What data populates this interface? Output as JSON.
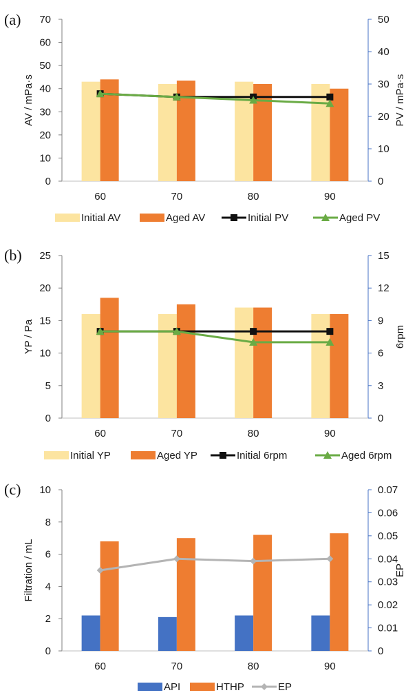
{
  "colors": {
    "initial_bar": "#fce4a0",
    "aged_bar": "#ee7d31",
    "initial_line": "#111111",
    "aged_line": "#6aab45",
    "api_bar": "#4472c4",
    "hthp_bar": "#ee7d31",
    "ep_line": "#b4b4b4",
    "right_axis": "#4472c4",
    "left_axis": "#7f7f7f"
  },
  "chart_data": [
    {
      "panel": "(a)",
      "type": "bar",
      "categories": [
        "60",
        "70",
        "80",
        "90"
      ],
      "ylabel": "AV / mPa·s",
      "ylabel_right": "PV / mPa·s",
      "ylim": [
        0,
        70
      ],
      "yticks": [
        0,
        10,
        20,
        30,
        40,
        50,
        60,
        70
      ],
      "ylim_right": [
        0,
        50
      ],
      "yticks_right": [
        0,
        10,
        20,
        30,
        40,
        50
      ],
      "series": [
        {
          "name": "Initial AV",
          "kind": "bar",
          "axis": "left",
          "color_key": "initial_bar",
          "values": [
            43,
            42,
            43,
            42
          ]
        },
        {
          "name": "Aged AV",
          "kind": "bar",
          "axis": "left",
          "color_key": "aged_bar",
          "values": [
            44,
            43.5,
            42,
            40
          ]
        },
        {
          "name": "Initial PV",
          "kind": "line",
          "marker": "square",
          "axis": "right",
          "color_key": "initial_line",
          "values": [
            27,
            26,
            26,
            26
          ]
        },
        {
          "name": "Aged PV",
          "kind": "line",
          "marker": "triangle",
          "axis": "right",
          "color_key": "aged_line",
          "values": [
            27,
            26,
            25,
            24
          ]
        }
      ],
      "legend": "bottom",
      "grid": false
    },
    {
      "panel": "(b)",
      "type": "bar",
      "categories": [
        "60",
        "70",
        "80",
        "90"
      ],
      "ylabel": "YP / Pa",
      "ylabel_right": "6rpm",
      "ylim": [
        0,
        25
      ],
      "yticks": [
        0,
        5,
        10,
        15,
        20,
        25
      ],
      "ylim_right": [
        0,
        15
      ],
      "yticks_right": [
        0,
        3,
        6,
        9,
        12,
        15
      ],
      "series": [
        {
          "name": "Initial YP",
          "kind": "bar",
          "axis": "left",
          "color_key": "initial_bar",
          "values": [
            16,
            16,
            17,
            16
          ]
        },
        {
          "name": "Aged YP",
          "kind": "bar",
          "axis": "left",
          "color_key": "aged_bar",
          "values": [
            18.5,
            17.5,
            17,
            16
          ]
        },
        {
          "name": "Initial 6rpm",
          "kind": "line",
          "marker": "square",
          "axis": "right",
          "color_key": "initial_line",
          "values": [
            8,
            8,
            8,
            8
          ]
        },
        {
          "name": "Aged 6rpm",
          "kind": "line",
          "marker": "triangle",
          "axis": "right",
          "color_key": "aged_line",
          "values": [
            8,
            8,
            7,
            7
          ]
        }
      ],
      "legend": "bottom",
      "grid": false
    },
    {
      "panel": "(c)",
      "type": "bar",
      "categories": [
        "60",
        "70",
        "80",
        "90"
      ],
      "ylabel": "Filtration / mL",
      "ylabel_right": "EP",
      "ylim": [
        0,
        10
      ],
      "yticks": [
        0,
        2,
        4,
        6,
        8,
        10
      ],
      "ylim_right": [
        0,
        0.07
      ],
      "yticks_right": [
        0,
        0.01,
        0.02,
        0.03,
        0.04,
        0.05,
        0.06,
        0.07
      ],
      "series": [
        {
          "name": "API",
          "kind": "bar",
          "axis": "left",
          "color_key": "api_bar",
          "values": [
            2.2,
            2.1,
            2.2,
            2.2
          ]
        },
        {
          "name": "HTHP",
          "kind": "bar",
          "axis": "left",
          "color_key": "hthp_bar",
          "values": [
            6.8,
            7.0,
            7.2,
            7.3
          ]
        },
        {
          "name": "EP",
          "kind": "line",
          "marker": "diamond",
          "axis": "right",
          "color_key": "ep_line",
          "values": [
            0.035,
            0.04,
            0.039,
            0.04
          ]
        }
      ],
      "legend": "bottom",
      "grid": false
    }
  ]
}
